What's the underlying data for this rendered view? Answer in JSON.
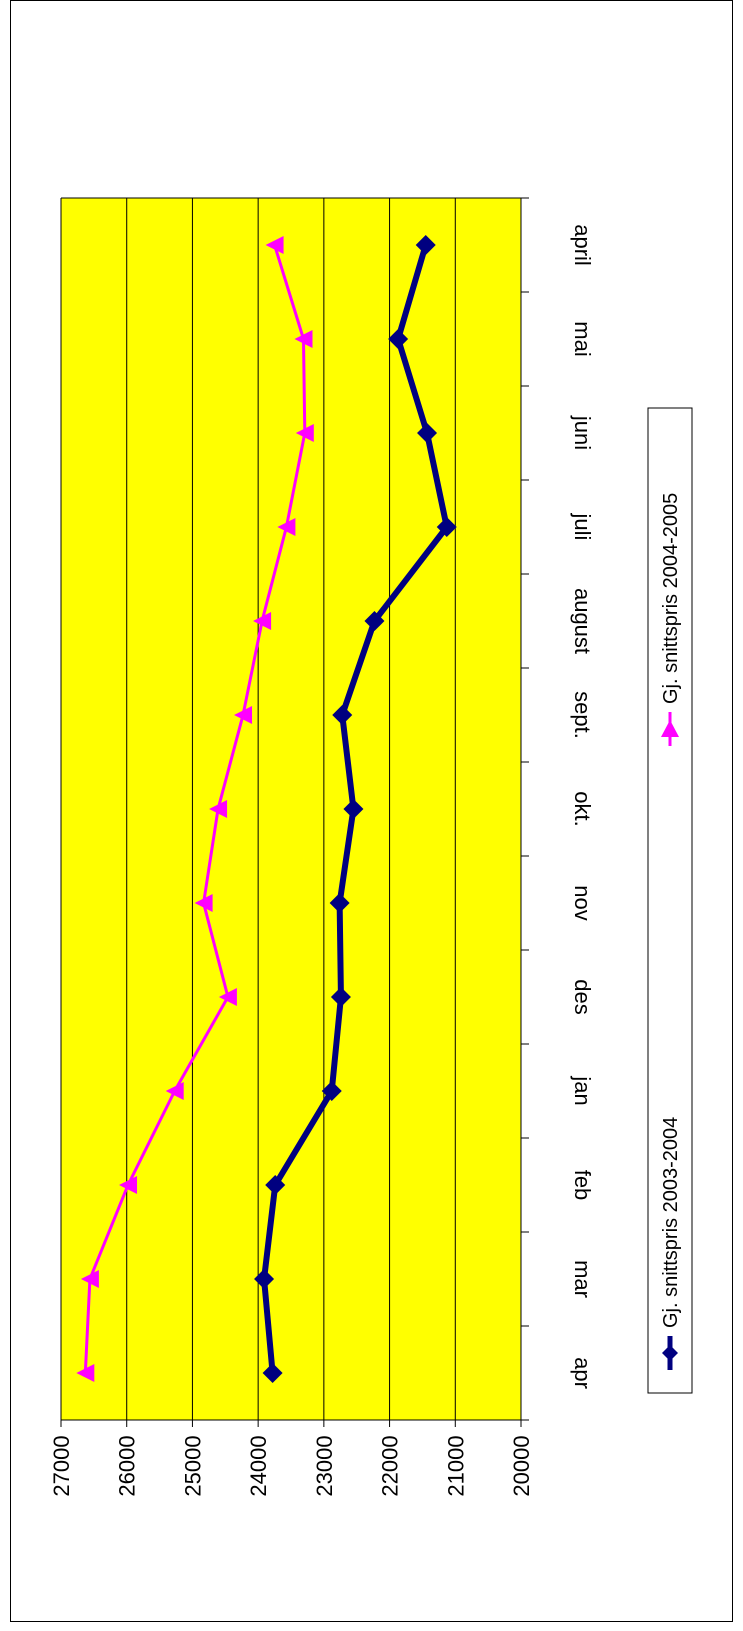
{
  "chart_data": {
    "type": "line",
    "orientation": "rotated-90-clockwise",
    "categories": [
      "april",
      "mai",
      "juni",
      "juli",
      "august",
      "sept.",
      "okt.",
      "nov",
      "des",
      "jan",
      "feb",
      "mar",
      "apr"
    ],
    "ylim": [
      20000,
      27000
    ],
    "yticks": [
      20000,
      21000,
      22000,
      23000,
      24000,
      25000,
      26000,
      27000
    ],
    "grid": true,
    "plot_background": "#ffff00",
    "legend_position": "right",
    "series": [
      {
        "name": "Gj. snittspris 2003-2004",
        "color": "#000080",
        "marker": "diamond",
        "values": [
          21450,
          21870,
          21430,
          21130,
          22230,
          22720,
          22550,
          22760,
          22740,
          22880,
          23740,
          23910,
          23780
        ]
      },
      {
        "name": "Gj. snittspris 2004-2005",
        "color": "#ff00ff",
        "marker": "triangle",
        "values": [
          23750,
          23310,
          23290,
          23570,
          23940,
          24230,
          24610,
          24830,
          24460,
          25270,
          25980,
          26560,
          26630
        ]
      }
    ]
  }
}
